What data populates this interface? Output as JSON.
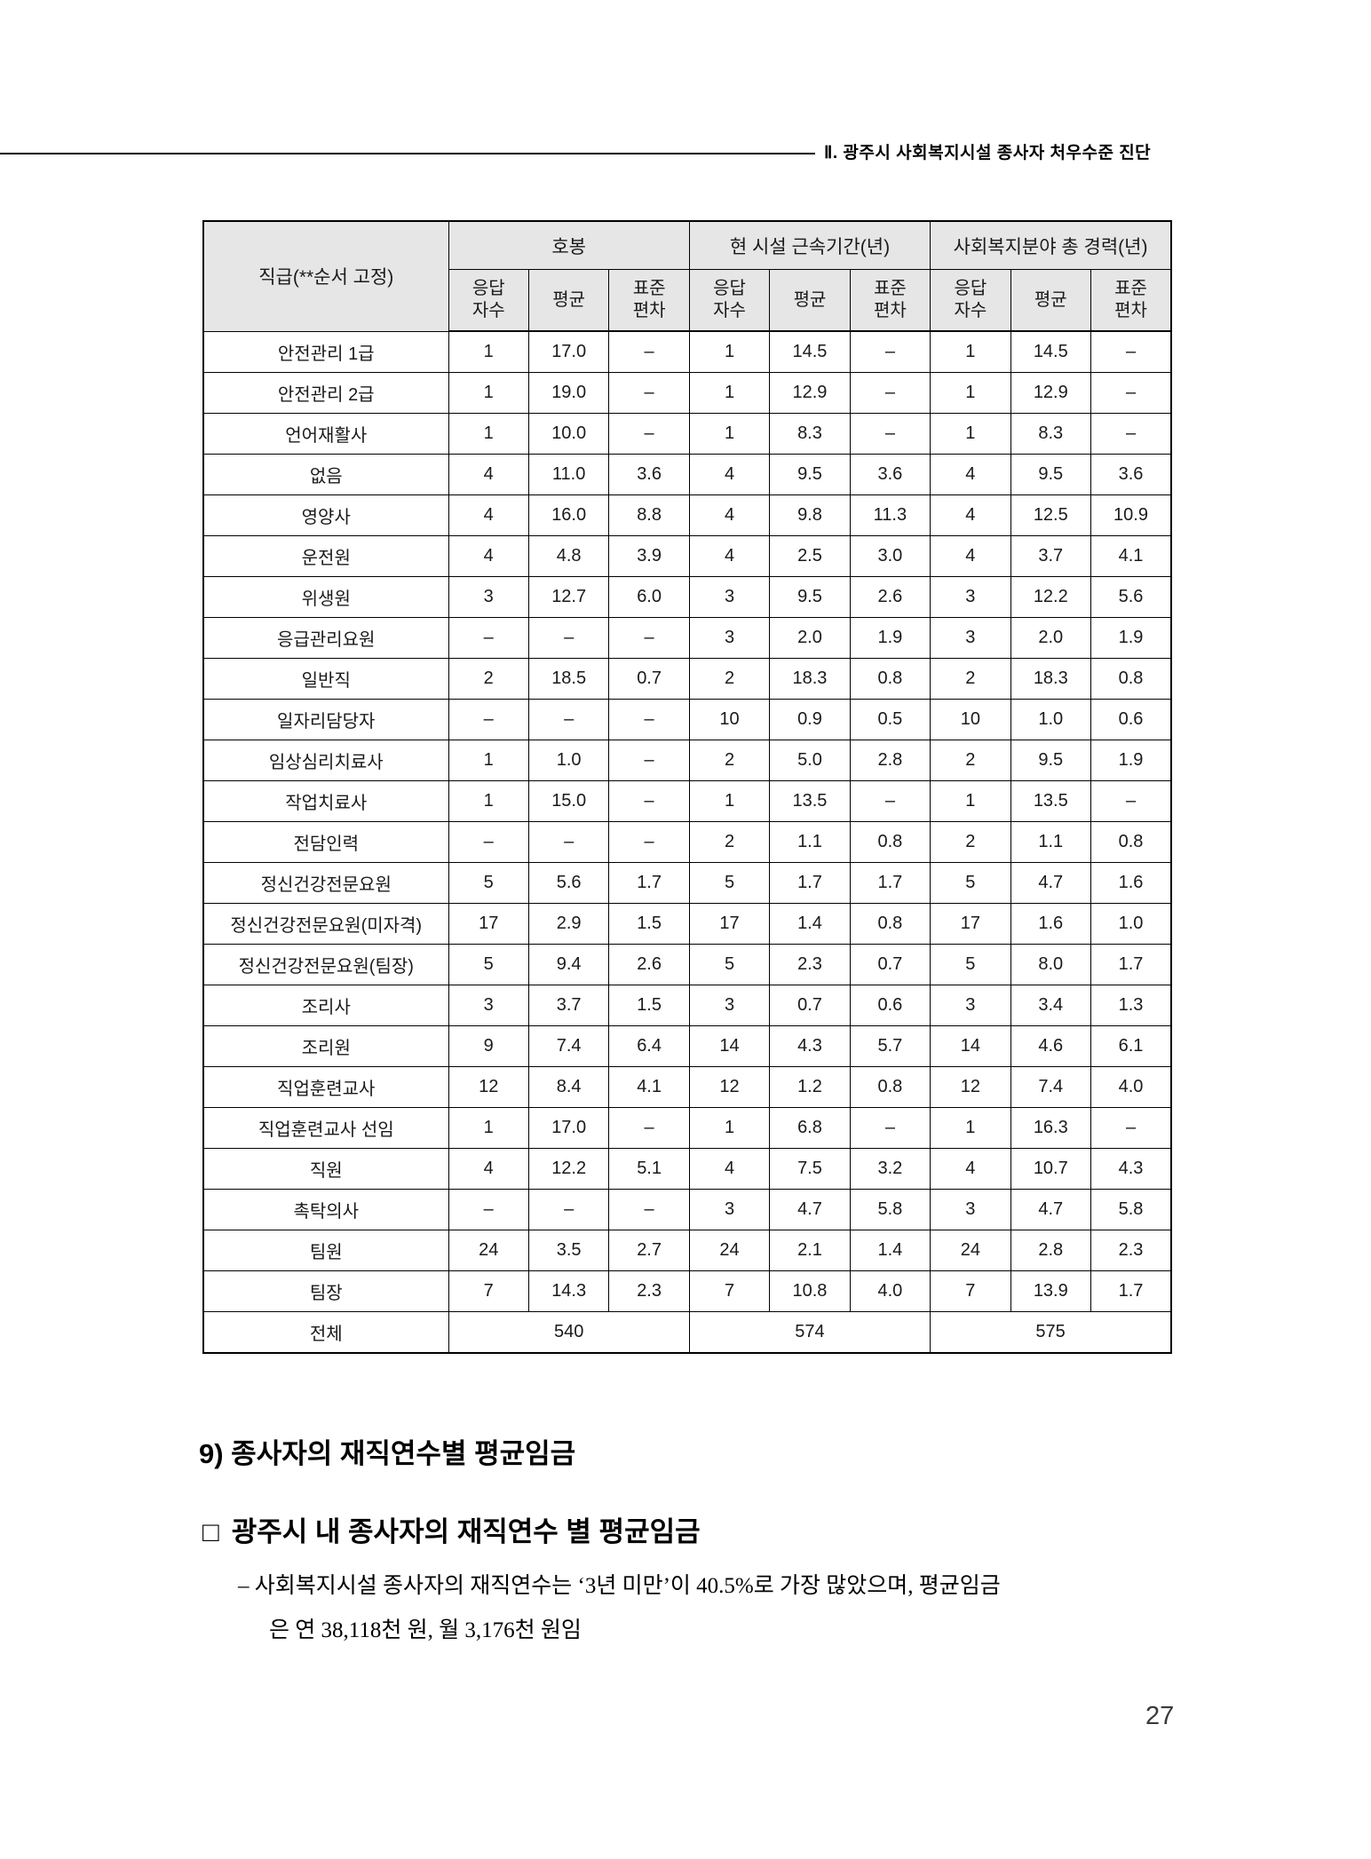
{
  "page": {
    "header_title": "Ⅱ. 광주시 사회복지시설 종사자 처우수준 진단",
    "page_number": "27"
  },
  "table": {
    "corner_header": "직급(**순서 고정)",
    "groups": [
      {
        "label": "호봉"
      },
      {
        "label": "현 시설 근속기간(년)"
      },
      {
        "label": "사회복지분야 총 경력(년)"
      }
    ],
    "sub_headers": [
      "응답\n자수",
      "평균",
      "표준\n편차"
    ],
    "rows": [
      {
        "label": "안전관리 1급",
        "values": [
          "1",
          "17.0",
          "–",
          "1",
          "14.5",
          "–",
          "1",
          "14.5",
          "–"
        ]
      },
      {
        "label": "안전관리 2급",
        "values": [
          "1",
          "19.0",
          "–",
          "1",
          "12.9",
          "–",
          "1",
          "12.9",
          "–"
        ]
      },
      {
        "label": "언어재활사",
        "values": [
          "1",
          "10.0",
          "–",
          "1",
          "8.3",
          "–",
          "1",
          "8.3",
          "–"
        ]
      },
      {
        "label": "없음",
        "values": [
          "4",
          "11.0",
          "3.6",
          "4",
          "9.5",
          "3.6",
          "4",
          "9.5",
          "3.6"
        ]
      },
      {
        "label": "영양사",
        "values": [
          "4",
          "16.0",
          "8.8",
          "4",
          "9.8",
          "11.3",
          "4",
          "12.5",
          "10.9"
        ]
      },
      {
        "label": "운전원",
        "values": [
          "4",
          "4.8",
          "3.9",
          "4",
          "2.5",
          "3.0",
          "4",
          "3.7",
          "4.1"
        ]
      },
      {
        "label": "위생원",
        "values": [
          "3",
          "12.7",
          "6.0",
          "3",
          "9.5",
          "2.6",
          "3",
          "12.2",
          "5.6"
        ]
      },
      {
        "label": "응급관리요원",
        "values": [
          "–",
          "–",
          "–",
          "3",
          "2.0",
          "1.9",
          "3",
          "2.0",
          "1.9"
        ]
      },
      {
        "label": "일반직",
        "values": [
          "2",
          "18.5",
          "0.7",
          "2",
          "18.3",
          "0.8",
          "2",
          "18.3",
          "0.8"
        ]
      },
      {
        "label": "일자리담당자",
        "values": [
          "–",
          "–",
          "–",
          "10",
          "0.9",
          "0.5",
          "10",
          "1.0",
          "0.6"
        ]
      },
      {
        "label": "임상심리치료사",
        "values": [
          "1",
          "1.0",
          "–",
          "2",
          "5.0",
          "2.8",
          "2",
          "9.5",
          "1.9"
        ]
      },
      {
        "label": "작업치료사",
        "values": [
          "1",
          "15.0",
          "–",
          "1",
          "13.5",
          "–",
          "1",
          "13.5",
          "–"
        ]
      },
      {
        "label": "전담인력",
        "values": [
          "–",
          "–",
          "–",
          "2",
          "1.1",
          "0.8",
          "2",
          "1.1",
          "0.8"
        ]
      },
      {
        "label": "정신건강전문요원",
        "values": [
          "5",
          "5.6",
          "1.7",
          "5",
          "1.7",
          "1.7",
          "5",
          "4.7",
          "1.6"
        ]
      },
      {
        "label": "정신건강전문요원(미자격)",
        "values": [
          "17",
          "2.9",
          "1.5",
          "17",
          "1.4",
          "0.8",
          "17",
          "1.6",
          "1.0"
        ]
      },
      {
        "label": "정신건강전문요원(팀장)",
        "values": [
          "5",
          "9.4",
          "2.6",
          "5",
          "2.3",
          "0.7",
          "5",
          "8.0",
          "1.7"
        ]
      },
      {
        "label": "조리사",
        "values": [
          "3",
          "3.7",
          "1.5",
          "3",
          "0.7",
          "0.6",
          "3",
          "3.4",
          "1.3"
        ]
      },
      {
        "label": "조리원",
        "values": [
          "9",
          "7.4",
          "6.4",
          "14",
          "4.3",
          "5.7",
          "14",
          "4.6",
          "6.1"
        ]
      },
      {
        "label": "직업훈련교사",
        "values": [
          "12",
          "8.4",
          "4.1",
          "12",
          "1.2",
          "0.8",
          "12",
          "7.4",
          "4.0"
        ]
      },
      {
        "label": "직업훈련교사 선임",
        "values": [
          "1",
          "17.0",
          "–",
          "1",
          "6.8",
          "–",
          "1",
          "16.3",
          "–"
        ]
      },
      {
        "label": "직원",
        "values": [
          "4",
          "12.2",
          "5.1",
          "4",
          "7.5",
          "3.2",
          "4",
          "10.7",
          "4.3"
        ]
      },
      {
        "label": "촉탁의사",
        "values": [
          "–",
          "–",
          "–",
          "3",
          "4.7",
          "5.8",
          "3",
          "4.7",
          "5.8"
        ]
      },
      {
        "label": "팀원",
        "values": [
          "24",
          "3.5",
          "2.7",
          "24",
          "2.1",
          "1.4",
          "24",
          "2.8",
          "2.3"
        ]
      },
      {
        "label": "팀장",
        "values": [
          "7",
          "14.3",
          "2.3",
          "7",
          "10.8",
          "4.0",
          "7",
          "13.9",
          "1.7"
        ]
      }
    ],
    "total_row": {
      "label": "전체",
      "values": [
        "540",
        "574",
        "575"
      ]
    }
  },
  "section": {
    "heading": "9) 종사자의 재직연수별 평균임금",
    "sub_heading": {
      "marker": "□",
      "text": "광주시 내 종사자의 재직연수 별 평균임금"
    },
    "bullet": {
      "line1": "– 사회복지시설 종사자의 재직연수는 ‘3년 미만’이 40.5%로 가장 많았으며, 평균임금",
      "line2": "은 연 38,118천 원, 월 3,176천 원임"
    }
  }
}
